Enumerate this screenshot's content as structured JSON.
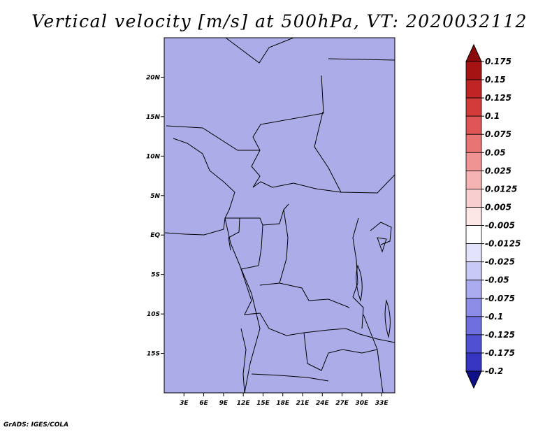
{
  "title": "Vertical velocity [m/s] at 500hPa, VT: 2020032112",
  "footer": "GrADS: IGES/COLA",
  "map": {
    "variable": "Vertical velocity",
    "units": "m/s",
    "level": "500hPa",
    "valid_time": "2020032112",
    "lon_range": [
      0,
      35
    ],
    "lat_range": [
      -20,
      25
    ],
    "lat_ticks": [
      {
        "value": 20,
        "label": "20N"
      },
      {
        "value": 15,
        "label": "15N"
      },
      {
        "value": 10,
        "label": "10N"
      },
      {
        "value": 5,
        "label": "5N"
      },
      {
        "value": 0,
        "label": "EQ"
      },
      {
        "value": -5,
        "label": "5S"
      },
      {
        "value": -10,
        "label": "10S"
      },
      {
        "value": -15,
        "label": "15S"
      }
    ],
    "lon_ticks": [
      {
        "value": 3,
        "label": "3E"
      },
      {
        "value": 6,
        "label": "6E"
      },
      {
        "value": 9,
        "label": "9E"
      },
      {
        "value": 12,
        "label": "12E"
      },
      {
        "value": 15,
        "label": "15E"
      },
      {
        "value": 18,
        "label": "18E"
      },
      {
        "value": 21,
        "label": "21E"
      },
      {
        "value": 24,
        "label": "24E"
      },
      {
        "value": 27,
        "label": "27E"
      },
      {
        "value": 30,
        "label": "30E"
      },
      {
        "value": 33,
        "label": "33E"
      }
    ]
  },
  "colorbar": {
    "levels": [
      {
        "label": "0.175",
        "color": "#a51313"
      },
      {
        "label": "0.15",
        "color": "#c02525"
      },
      {
        "label": "0.125",
        "color": "#d33b3b"
      },
      {
        "label": "0.1",
        "color": "#e05555"
      },
      {
        "label": "0.075",
        "color": "#e87474"
      },
      {
        "label": "0.05",
        "color": "#ef9393"
      },
      {
        "label": "0.025",
        "color": "#f5b3b3"
      },
      {
        "label": "0.0125",
        "color": "#f9cece"
      },
      {
        "label": "0.005",
        "color": "#fce6e6"
      },
      {
        "label": "-0.005",
        "color": "#ffffff"
      },
      {
        "label": "-0.0125",
        "color": "#e3e3fb"
      },
      {
        "label": "-0.025",
        "color": "#c9c9f6"
      },
      {
        "label": "-0.05",
        "color": "#ababf0"
      },
      {
        "label": "-0.075",
        "color": "#8d8de8"
      },
      {
        "label": "-0.1",
        "color": "#6e6ede"
      },
      {
        "label": "-0.125",
        "color": "#5050d2"
      },
      {
        "label": "-0.175",
        "color": "#3535c2"
      },
      {
        "label": "-0.2",
        "color": "#1f1fa8"
      }
    ],
    "top_arrow_color": "#8b0b0b",
    "bottom_arrow_color": "#10108a"
  }
}
